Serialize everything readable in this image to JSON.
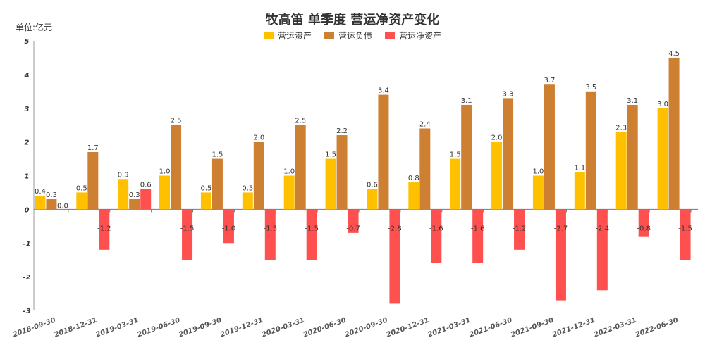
{
  "chart_data": {
    "type": "bar",
    "title": "牧高笛 单季度 营运净资产变化",
    "unit_label": "单位:亿元",
    "ylim": [
      -3,
      5
    ],
    "yticks": [
      5,
      4,
      3,
      2,
      1,
      0,
      -1,
      -2,
      -3
    ],
    "grid": false,
    "legend_position": "top-center",
    "categories": [
      "2018-09-30",
      "2018-12-31",
      "2019-03-31",
      "2019-06-30",
      "2019-09-30",
      "2019-12-31",
      "2020-03-31",
      "2020-06-30",
      "2020-09-30",
      "2020-12-31",
      "2021-03-31",
      "2021-06-30",
      "2021-09-30",
      "2021-12-31",
      "2022-03-31",
      "2022-06-30"
    ],
    "series": [
      {
        "name": "营运资产",
        "color": "#FFC000",
        "values": [
          0.4,
          0.5,
          0.9,
          1.0,
          0.5,
          0.5,
          1.0,
          1.5,
          0.6,
          0.8,
          1.5,
          2.0,
          1.0,
          1.1,
          2.3,
          3.0
        ],
        "labels": [
          "0.4",
          "0.5",
          "0.9",
          "1.0",
          "0.5",
          "0.5",
          "1.0",
          "1.5",
          "0.6",
          "0.8",
          "1.5",
          "2.0",
          "1.0",
          "1.1",
          "2.3",
          "3.0"
        ]
      },
      {
        "name": "营运负债",
        "color": "#CD7F32",
        "values": [
          0.3,
          1.7,
          0.3,
          2.5,
          1.5,
          2.0,
          2.5,
          2.2,
          3.4,
          2.4,
          3.1,
          3.3,
          3.7,
          3.5,
          3.1,
          4.5
        ],
        "labels": [
          "0.3",
          "1.7",
          "0.3",
          "2.5",
          "1.5",
          "2.0",
          "2.5",
          "2.2",
          "3.4",
          "2.4",
          "3.1",
          "3.3",
          "3.7",
          "3.5",
          "3.1",
          "4.5"
        ]
      },
      {
        "name": "营运净资产",
        "color": "#FF5050",
        "values": [
          0.0,
          -1.2,
          0.6,
          -1.5,
          -1.0,
          -1.5,
          -1.5,
          -0.7,
          -2.8,
          -1.6,
          -1.6,
          -1.2,
          -2.7,
          -2.4,
          -0.8,
          -1.5
        ],
        "labels": [
          "0.0",
          "-1.2",
          "0.6",
          "-1.5",
          "-1.0",
          "-1.5",
          "-1.5",
          "-0.7",
          "-2.8",
          "-1.6",
          "-1.6",
          "-1.2",
          "-2.7",
          "-2.4",
          "-0.8",
          "-1.5"
        ]
      }
    ]
  }
}
